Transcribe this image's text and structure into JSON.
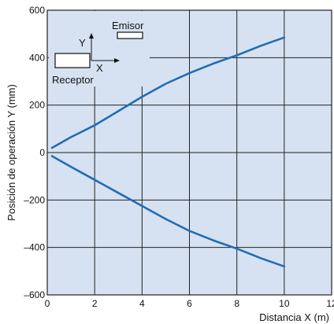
{
  "chart_data": {
    "type": "line",
    "xlabel": "Distancia X (m)",
    "ylabel": "Posición de operación Y (mm)",
    "xlim": [
      0,
      12
    ],
    "ylim": [
      -600,
      600
    ],
    "x_ticks": [
      0,
      2,
      4,
      6,
      8,
      10,
      12
    ],
    "y_ticks": [
      600,
      400,
      200,
      0,
      -200,
      -400,
      -600
    ],
    "x_tick_labels": [
      "0",
      "2",
      "4",
      "6",
      "8",
      "10",
      "12"
    ],
    "y_tick_labels": [
      "600",
      "400",
      "200",
      "0",
      "–200",
      "–400",
      "–600"
    ],
    "grid": true,
    "background_color": "#d6e2f2",
    "series_color": "#1f6db4",
    "series": [
      {
        "x": [
          0.2,
          1,
          2,
          3,
          4,
          5,
          6,
          7,
          8,
          9,
          10
        ],
        "y": [
          20,
          65,
          115,
          175,
          235,
          290,
          335,
          375,
          410,
          450,
          485
        ]
      },
      {
        "x": [
          0.2,
          1,
          2,
          3,
          4,
          5,
          6,
          7,
          8,
          9,
          10
        ],
        "y": [
          -15,
          -60,
          -115,
          -170,
          -225,
          -280,
          -330,
          -370,
          -405,
          -445,
          -480
        ]
      }
    ],
    "inset": {
      "emitter_label": "Emisor",
      "receiver_label": "Receptor",
      "y_axis_label": "Y",
      "x_axis_label": "X"
    }
  }
}
